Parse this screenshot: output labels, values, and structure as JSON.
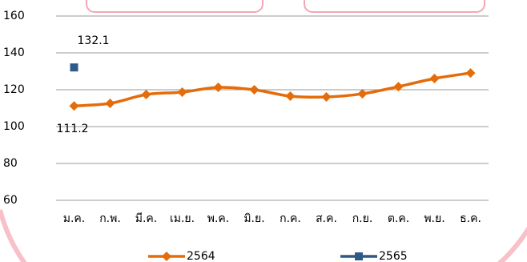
{
  "chart_data": {
    "type": "line",
    "categories": [
      "ม.ค.",
      "ก.พ.",
      "มี.ค.",
      "เม.ย.",
      "พ.ค.",
      "มิ.ย.",
      "ก.ค.",
      "ส.ค.",
      "ก.ย.",
      "ต.ค.",
      "พ.ย.",
      "ธ.ค."
    ],
    "series": [
      {
        "name": "2564",
        "color": "#e46c0a",
        "marker": "diamond",
        "values": [
          111.2,
          112.6,
          117.4,
          118.7,
          121.3,
          120.0,
          116.5,
          116.1,
          117.8,
          121.7,
          126.1,
          129.1
        ]
      },
      {
        "name": "2565",
        "color": "#2e5a87",
        "marker": "square",
        "values": [
          132.1,
          null,
          null,
          null,
          null,
          null,
          null,
          null,
          null,
          null,
          null,
          null
        ]
      }
    ],
    "ylim": [
      60,
      160
    ],
    "yticks": [
      60,
      80,
      100,
      120,
      140,
      160
    ],
    "grid": true,
    "legend": "bottom"
  }
}
